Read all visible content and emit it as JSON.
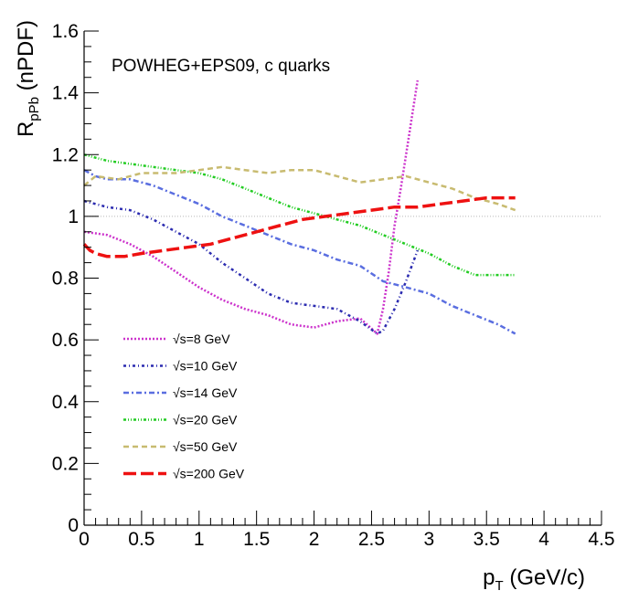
{
  "chart_data": {
    "type": "line",
    "annotation": "POWHEG+EPS09, c quarks",
    "xlabel": {
      "main": "p",
      "sub": "T",
      "unit": " (GeV/c)"
    },
    "ylabel": {
      "main": "R",
      "sub": "pPb",
      "unit": " (nPDF)"
    },
    "xlim": [
      0,
      4.5
    ],
    "ylim": [
      0,
      1.6
    ],
    "x_ticks": [
      0,
      0.5,
      1,
      1.5,
      2,
      2.5,
      3,
      3.5,
      4,
      4.5
    ],
    "x_tick_labels": [
      "0",
      "0.5",
      "1",
      "1.5",
      "2",
      "2.5",
      "3",
      "3.5",
      "4",
      "4.5"
    ],
    "y_ticks": [
      0,
      0.2,
      0.4,
      0.6,
      0.8,
      1,
      1.2,
      1.4,
      1.6
    ],
    "y_tick_labels": [
      "0",
      "0.2",
      "0.4",
      "0.6",
      "0.8",
      "1",
      "1.2",
      "1.4",
      "1.6"
    ],
    "reference_line": 1.0,
    "legend_placement": "bottom-left",
    "series": [
      {
        "name": "√s=8 GeV",
        "color": "#cc33cc",
        "dash": "2,2",
        "width": 2.5,
        "x": [
          0,
          0.2,
          0.4,
          0.6,
          0.8,
          1.0,
          1.2,
          1.4,
          1.6,
          1.8,
          2.0,
          2.2,
          2.4,
          2.55,
          2.6,
          2.65,
          2.7,
          2.75,
          2.8,
          2.85,
          2.9
        ],
        "y": [
          0.95,
          0.94,
          0.91,
          0.87,
          0.82,
          0.77,
          0.73,
          0.7,
          0.68,
          0.65,
          0.64,
          0.66,
          0.67,
          0.62,
          0.7,
          0.82,
          0.97,
          1.08,
          1.2,
          1.32,
          1.44
        ]
      },
      {
        "name": "√s=10 GeV",
        "color": "#2b2bb0",
        "dash": "3,3,1,3",
        "width": 2.5,
        "x": [
          0,
          0.2,
          0.4,
          0.6,
          0.8,
          1.0,
          1.2,
          1.4,
          1.6,
          1.8,
          2.0,
          2.2,
          2.4,
          2.55,
          2.6,
          2.7,
          2.8,
          2.9
        ],
        "y": [
          1.05,
          1.03,
          1.02,
          0.99,
          0.95,
          0.91,
          0.85,
          0.8,
          0.75,
          0.72,
          0.71,
          0.7,
          0.66,
          0.62,
          0.63,
          0.7,
          0.79,
          0.89
        ]
      },
      {
        "name": "√s=14 GeV",
        "color": "#5a6ee0",
        "dash": "6,3,2,3",
        "width": 2.5,
        "x": [
          0,
          0.1,
          0.2,
          0.4,
          0.6,
          0.8,
          1.0,
          1.2,
          1.4,
          1.6,
          1.8,
          2.0,
          2.2,
          2.4,
          2.6,
          2.8,
          3.0,
          3.2,
          3.4,
          3.6,
          3.75
        ],
        "y": [
          1.15,
          1.13,
          1.12,
          1.12,
          1.1,
          1.07,
          1.04,
          1.0,
          0.97,
          0.94,
          0.91,
          0.89,
          0.86,
          0.84,
          0.79,
          0.77,
          0.75,
          0.71,
          0.68,
          0.65,
          0.62
        ]
      },
      {
        "name": "√s=20 GeV",
        "color": "#22cc22",
        "dash": "3,2,1,2,1,2",
        "width": 2.5,
        "x": [
          0,
          0.2,
          0.4,
          0.6,
          0.8,
          1.0,
          1.2,
          1.4,
          1.6,
          1.8,
          2.0,
          2.2,
          2.4,
          2.6,
          2.8,
          3.0,
          3.2,
          3.4,
          3.6,
          3.75
        ],
        "y": [
          1.2,
          1.18,
          1.17,
          1.16,
          1.15,
          1.14,
          1.12,
          1.09,
          1.06,
          1.03,
          1.01,
          0.99,
          0.97,
          0.94,
          0.91,
          0.88,
          0.84,
          0.81,
          0.81,
          0.81
        ]
      },
      {
        "name": "√s=50 GeV",
        "color": "#c8bb70",
        "dash": "6,4",
        "width": 2.5,
        "x": [
          0,
          0.1,
          0.3,
          0.5,
          0.8,
          1.0,
          1.2,
          1.4,
          1.6,
          1.8,
          2.0,
          2.2,
          2.4,
          2.6,
          2.8,
          3.0,
          3.2,
          3.4,
          3.6,
          3.75
        ],
        "y": [
          1.1,
          1.13,
          1.12,
          1.14,
          1.14,
          1.15,
          1.16,
          1.15,
          1.14,
          1.15,
          1.15,
          1.13,
          1.11,
          1.12,
          1.13,
          1.11,
          1.09,
          1.06,
          1.04,
          1.02
        ]
      },
      {
        "name": "√s=200 GeV",
        "color": "#ee1111",
        "dash": "14,5",
        "width": 3.5,
        "x": [
          0,
          0.05,
          0.1,
          0.2,
          0.35,
          0.5,
          0.7,
          0.9,
          1.1,
          1.3,
          1.5,
          1.7,
          1.9,
          2.1,
          2.3,
          2.5,
          2.7,
          2.9,
          3.1,
          3.3,
          3.5,
          3.75
        ],
        "y": [
          0.91,
          0.89,
          0.88,
          0.87,
          0.87,
          0.88,
          0.89,
          0.9,
          0.91,
          0.93,
          0.95,
          0.97,
          0.99,
          1.0,
          1.01,
          1.02,
          1.03,
          1.03,
          1.04,
          1.05,
          1.06,
          1.06
        ]
      }
    ]
  }
}
